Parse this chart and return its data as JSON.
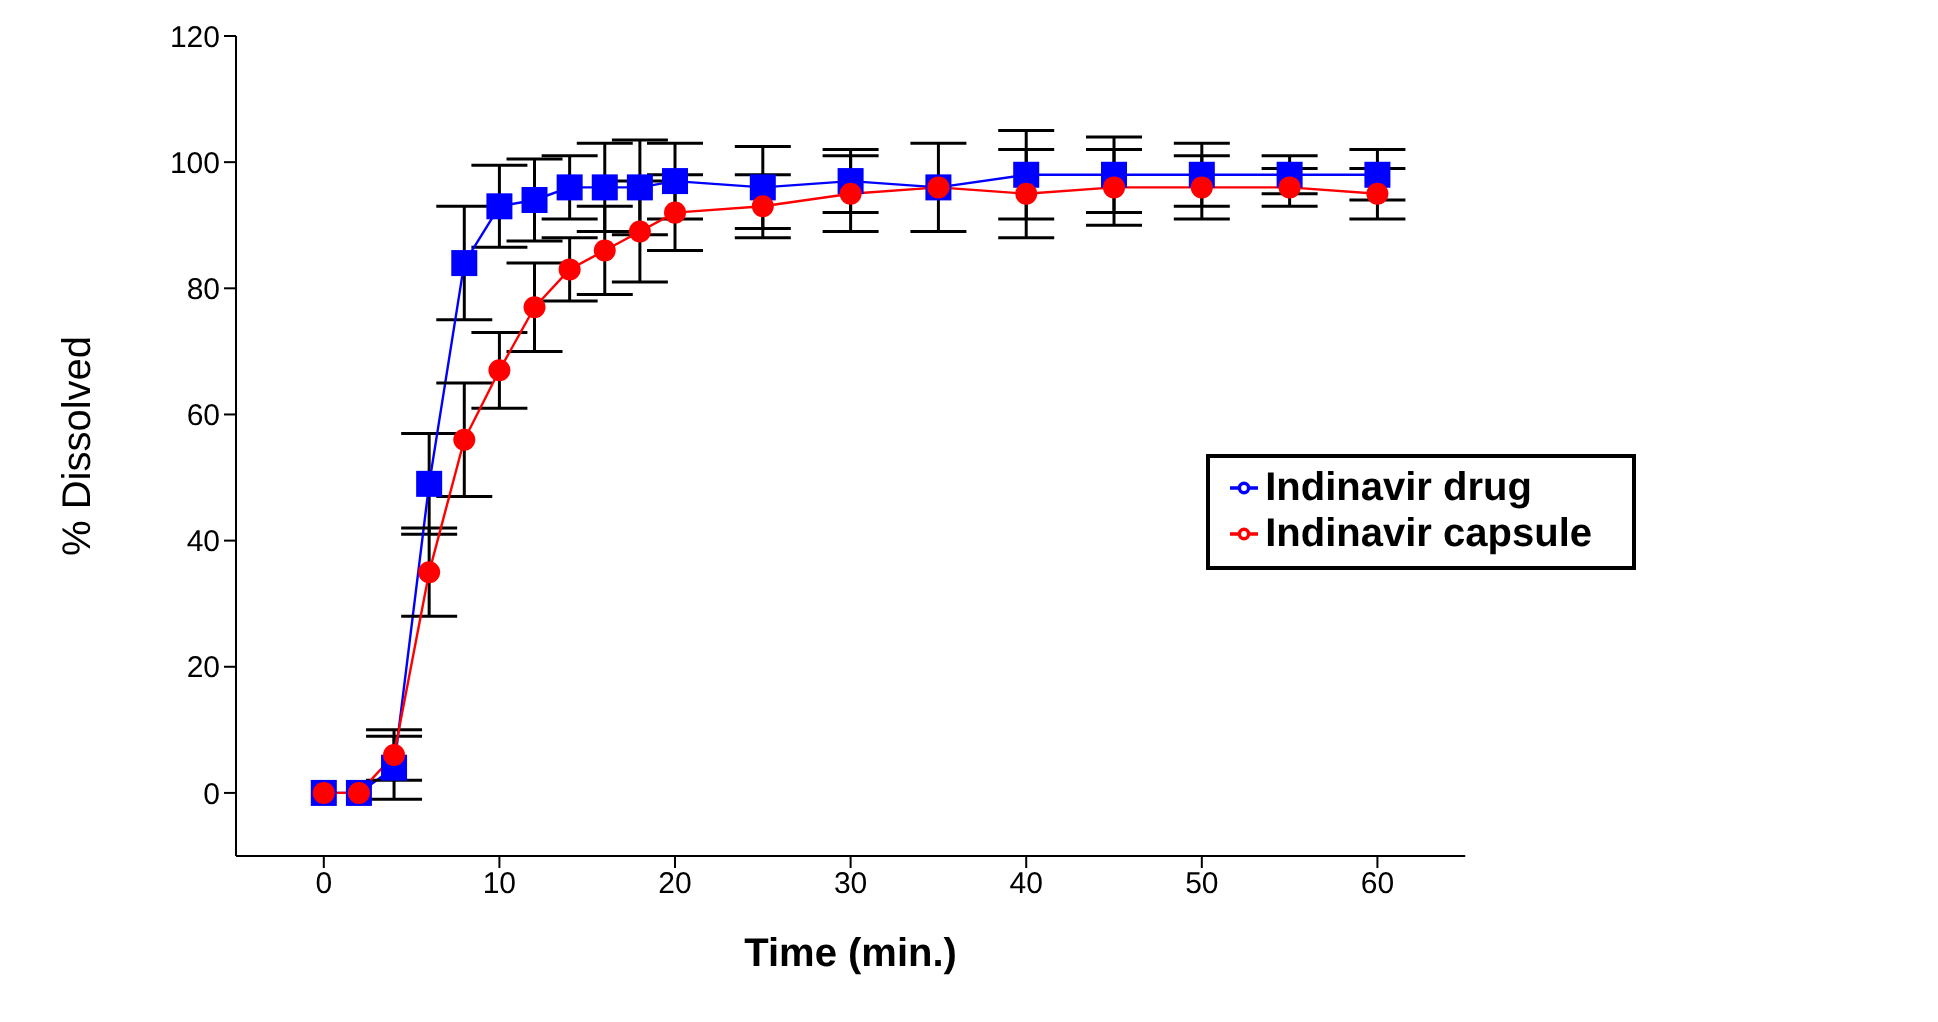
{
  "chart_data": {
    "type": "line",
    "xlabel": "Time (min.)",
    "ylabel": "% Dissolved",
    "x": [
      0,
      2,
      4,
      6,
      8,
      10,
      12,
      14,
      16,
      18,
      20,
      25,
      30,
      35,
      40,
      45,
      50,
      55,
      60
    ],
    "series": [
      {
        "name": "Indinavir drug",
        "color": "#0000ff",
        "marker": "square",
        "values": [
          0,
          0,
          4,
          49,
          84,
          93,
          94,
          96,
          96,
          96,
          97,
          96,
          97,
          96,
          98,
          98,
          98,
          98,
          98
        ],
        "errors": [
          null,
          null,
          5,
          8,
          9,
          6.5,
          6.5,
          5,
          7,
          7.5,
          6,
          6.5,
          5,
          7,
          7,
          6,
          5,
          3,
          4
        ]
      },
      {
        "name": "Indinavir capsule",
        "color": "#ff0000",
        "marker": "circle",
        "values": [
          0,
          0,
          6,
          35,
          56,
          67,
          77,
          83,
          86,
          89,
          92,
          93,
          95,
          96,
          95,
          96,
          96,
          96,
          95
        ],
        "errors": [
          null,
          null,
          4,
          7,
          9,
          6,
          7,
          5,
          7,
          8,
          6,
          5,
          6,
          null,
          7,
          6,
          5,
          3,
          4
        ]
      }
    ],
    "xlim": [
      -5,
      65
    ],
    "xticks": [
      0,
      10,
      20,
      30,
      40,
      50,
      60
    ],
    "ylim": [
      -10,
      120
    ],
    "yticks": [
      0,
      20,
      40,
      60,
      80,
      100,
      120
    ],
    "grid": false,
    "legend": "right",
    "line_style": "solid"
  }
}
